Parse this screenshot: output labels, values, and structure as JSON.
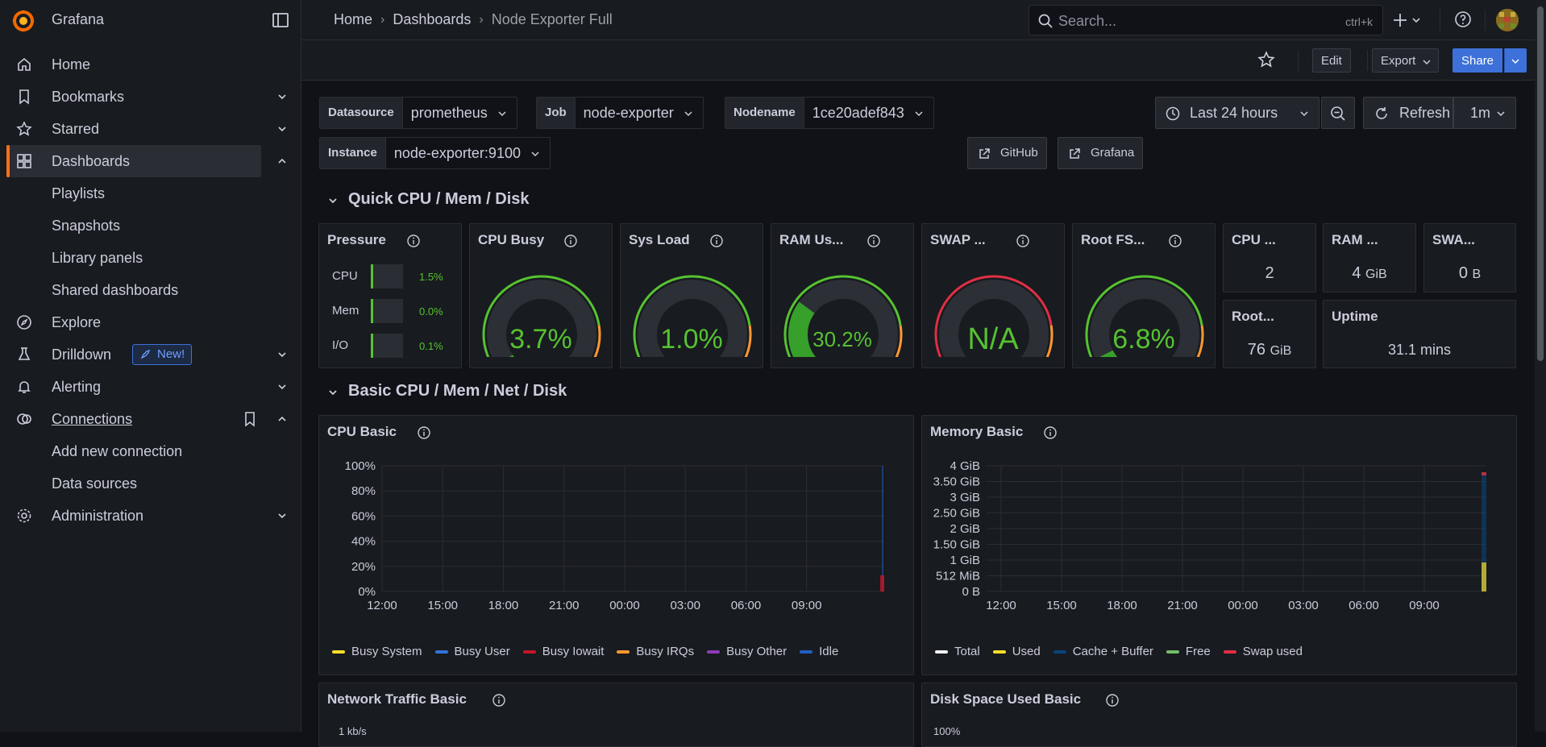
{
  "app": {
    "name": "Grafana"
  },
  "sidebar": {
    "items": [
      {
        "label": "Home"
      },
      {
        "label": "Bookmarks"
      },
      {
        "label": "Starred"
      },
      {
        "label": "Dashboards"
      },
      {
        "label": "Playlists"
      },
      {
        "label": "Snapshots"
      },
      {
        "label": "Library panels"
      },
      {
        "label": "Shared dashboards"
      },
      {
        "label": "Explore"
      },
      {
        "label": "Drilldown",
        "badge": "New!"
      },
      {
        "label": "Alerting"
      },
      {
        "label": "Connections"
      },
      {
        "label": "Add new connection"
      },
      {
        "label": "Data sources"
      },
      {
        "label": "Administration"
      }
    ]
  },
  "topbar": {
    "breadcrumbs": [
      "Home",
      "Dashboards",
      "Node Exporter Full"
    ],
    "search_placeholder": "Search...",
    "search_shortcut": "ctrl+k"
  },
  "actions": {
    "edit": "Edit",
    "export": "Export",
    "share": "Share"
  },
  "variables": [
    {
      "label": "Datasource",
      "value": "prometheus"
    },
    {
      "label": "Job",
      "value": "node-exporter"
    },
    {
      "label": "Nodename",
      "value": "1ce20adef843"
    },
    {
      "label": "Instance",
      "value": "node-exporter:9100"
    }
  ],
  "time": {
    "range": "Last 24 hours",
    "refresh": "Refresh",
    "interval": "1m"
  },
  "links": {
    "github": "GitHub",
    "grafana": "Grafana"
  },
  "rows": {
    "quick": "Quick CPU / Mem / Disk",
    "basic": "Basic CPU / Mem / Net / Disk"
  },
  "panels": {
    "pressure": {
      "title": "Pressure",
      "rows": [
        {
          "label": "CPU",
          "value": "1.5%",
          "fraction": 0.015
        },
        {
          "label": "Mem",
          "value": "0.0%",
          "fraction": 0.0
        },
        {
          "label": "I/O",
          "value": "0.1%",
          "fraction": 0.001
        }
      ]
    },
    "cpu_busy": {
      "title": "CPU Busy",
      "value": "3.7%",
      "percent": 3.7
    },
    "sys_load": {
      "title": "Sys Load",
      "value": "1.0%",
      "percent": 1.0
    },
    "ram_used": {
      "title": "RAM Us...",
      "value": "30.2%",
      "percent": 30.2
    },
    "swap_used": {
      "title": "SWAP ...",
      "value": "N/A",
      "percent": 0
    },
    "root_fs": {
      "title": "Root FS...",
      "value": "6.8%",
      "percent": 6.8
    },
    "cpu_cores": {
      "title": "CPU ...",
      "value": "2",
      "unit": ""
    },
    "ram_total": {
      "title": "RAM ...",
      "value": "4",
      "unit": "GiB"
    },
    "swap_total": {
      "title": "SWA...",
      "value": "0",
      "unit": "B"
    },
    "root_total": {
      "title": "Root...",
      "value": "76",
      "unit": "GiB"
    },
    "uptime": {
      "title": "Uptime",
      "value": "31.1 mins"
    },
    "network": {
      "title": "Network Traffic Basic",
      "first_tick": "1 kb/s"
    },
    "disk": {
      "title": "Disk Space Used Basic",
      "first_tick": "100%"
    }
  },
  "chart_data": [
    {
      "type": "area",
      "title": "CPU Basic",
      "x_ticks": [
        "12:00",
        "15:00",
        "18:00",
        "21:00",
        "00:00",
        "03:00",
        "06:00",
        "09:00"
      ],
      "y_ticks": [
        "100%",
        "80%",
        "60%",
        "40%",
        "20%",
        "0%"
      ],
      "ylim": [
        0,
        100
      ],
      "series": [
        {
          "name": "Busy System",
          "color": "#fade2a"
        },
        {
          "name": "Busy User",
          "color": "#3274d9"
        },
        {
          "name": "Busy Iowait",
          "color": "#c4162a"
        },
        {
          "name": "Busy IRQs",
          "color": "#ff9830"
        },
        {
          "name": "Busy Other",
          "color": "#8f3bb8"
        },
        {
          "name": "Idle",
          "color": "#1f60c4"
        }
      ]
    },
    {
      "type": "area",
      "title": "Memory Basic",
      "x_ticks": [
        "12:00",
        "15:00",
        "18:00",
        "21:00",
        "00:00",
        "03:00",
        "06:00",
        "09:00"
      ],
      "y_ticks": [
        "4 GiB",
        "3.50 GiB",
        "3 GiB",
        "2.50 GiB",
        "2 GiB",
        "1.50 GiB",
        "1 GiB",
        "512 MiB",
        "0 B"
      ],
      "series": [
        {
          "name": "Total",
          "color": "#f2f2f2"
        },
        {
          "name": "Used",
          "color": "#fade2a"
        },
        {
          "name": "Cache + Buffer",
          "color": "#0a437c"
        },
        {
          "name": "Free",
          "color": "#73bf69"
        },
        {
          "name": "Swap used",
          "color": "#e02f44"
        }
      ]
    }
  ]
}
